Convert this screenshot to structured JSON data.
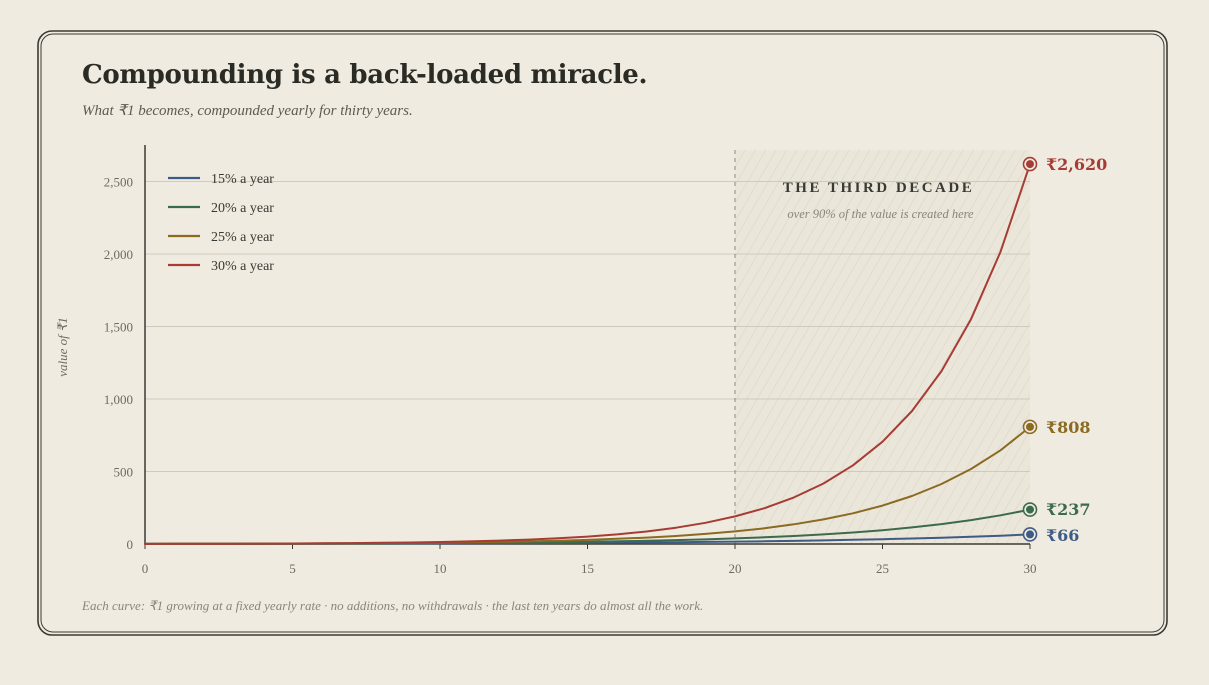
{
  "title": "Compounding is a back-loaded miracle.",
  "subtitle": "What ₹1 becomes, compounded yearly for thirty years.",
  "footer": "Each curve: ₹1 growing at a fixed yearly rate · no additions, no withdrawals · the last ten years do almost all the work.",
  "colors": {
    "background": "#f0ebe0",
    "ink": "#2b2b26",
    "grid": "#cfcabe",
    "axis": "#3a3a34",
    "tick_text": "#6e6a62",
    "s15": "#3e5b86",
    "s20": "#3b6b4c",
    "s25": "#8b6a22",
    "s30": "#a63c33"
  },
  "annotation": {
    "heading": "THE THIRD DECADE",
    "text": "over 90% of the value is created here",
    "x_start": 20,
    "x_end": 30
  },
  "chart_data": {
    "type": "line",
    "title": "Compounding is a back-loaded miracle.",
    "xlabel": "",
    "ylabel": "value of ₹1",
    "xlim": [
      0,
      30
    ],
    "ylim": [
      0,
      2700
    ],
    "x_ticks": [
      0,
      5,
      10,
      15,
      20,
      25,
      30
    ],
    "y_ticks": [
      0,
      500,
      1000,
      1500,
      2000,
      2500
    ],
    "y_tick_labels": [
      "0",
      "500",
      "1,000",
      "1,500",
      "2,000",
      "2,500"
    ],
    "grid": true,
    "legend": "top-left",
    "x": [
      0,
      1,
      2,
      3,
      4,
      5,
      6,
      7,
      8,
      9,
      10,
      11,
      12,
      13,
      14,
      15,
      16,
      17,
      18,
      19,
      20,
      21,
      22,
      23,
      24,
      25,
      26,
      27,
      28,
      29,
      30
    ],
    "series": [
      {
        "name": "15% a year",
        "color": "#3e5b86",
        "end_label": "₹66",
        "values": [
          1,
          1.15,
          1.32,
          1.52,
          1.75,
          2.01,
          2.31,
          2.66,
          3.06,
          3.52,
          4.05,
          4.65,
          5.35,
          6.15,
          7.08,
          8.14,
          9.36,
          10.76,
          12.38,
          14.23,
          16.37,
          18.82,
          21.64,
          24.89,
          28.63,
          32.92,
          37.86,
          43.54,
          50.07,
          57.58,
          66.21
        ]
      },
      {
        "name": "20% a year",
        "color": "#3b6b4c",
        "end_label": "₹237",
        "values": [
          1,
          1.2,
          1.44,
          1.73,
          2.07,
          2.49,
          2.99,
          3.58,
          4.3,
          5.16,
          6.19,
          7.43,
          8.92,
          10.7,
          12.84,
          15.41,
          18.49,
          22.19,
          26.62,
          31.95,
          38.34,
          46.0,
          55.21,
          66.25,
          79.5,
          95.4,
          114.48,
          137.37,
          164.84,
          197.81,
          237.38
        ]
      },
      {
        "name": "25% a year",
        "color": "#8b6a22",
        "end_label": "₹808",
        "values": [
          1,
          1.25,
          1.56,
          1.95,
          2.44,
          3.05,
          3.81,
          4.77,
          5.96,
          7.45,
          9.31,
          11.64,
          14.55,
          18.19,
          22.74,
          28.42,
          35.53,
          44.41,
          55.51,
          69.39,
          86.74,
          108.42,
          135.53,
          169.41,
          211.76,
          264.7,
          330.87,
          413.59,
          516.99,
          646.23,
          807.79
        ]
      },
      {
        "name": "30% a year",
        "color": "#a63c33",
        "end_label": "₹2,620",
        "values": [
          1,
          1.3,
          1.69,
          2.2,
          2.86,
          3.71,
          4.83,
          6.27,
          8.16,
          10.6,
          13.79,
          17.92,
          23.3,
          30.29,
          39.37,
          51.19,
          66.54,
          86.5,
          112.46,
          146.19,
          190.05,
          247.06,
          321.18,
          417.54,
          542.8,
          705.64,
          917.33,
          1192.53,
          1550.29,
          2015.38,
          2619.99
        ]
      }
    ]
  }
}
